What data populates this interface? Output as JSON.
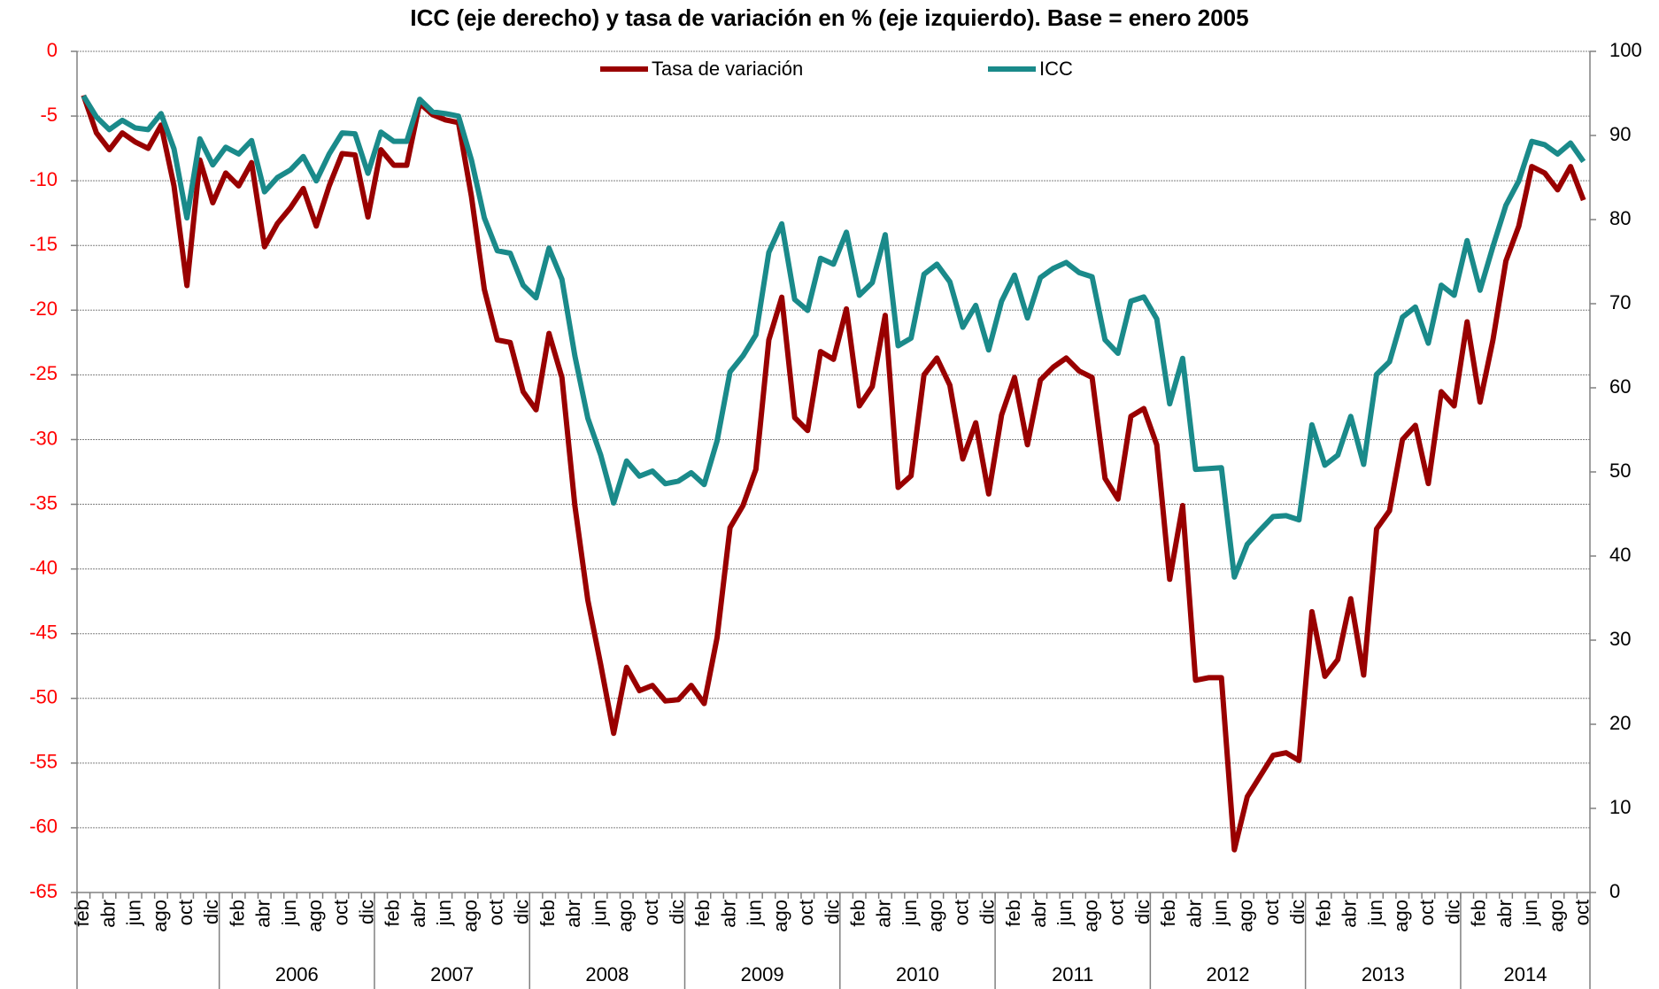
{
  "chart_data": {
    "type": "line",
    "title": "ICC (eje derecho) y tasa de variación en % (eje izquierdo). Base = enero 2005",
    "categories": [
      "feb",
      null,
      "abr",
      null,
      "jun",
      null,
      "ago",
      null,
      "oct",
      null,
      "dic",
      null,
      "feb",
      null,
      "abr",
      null,
      "jun",
      null,
      "ago",
      null,
      "oct",
      null,
      "dic",
      null,
      "feb",
      null,
      "abr",
      null,
      "jun",
      null,
      "ago",
      null,
      "oct",
      null,
      "dic",
      null,
      "feb",
      null,
      "abr",
      null,
      "jun",
      null,
      "ago",
      null,
      "oct",
      null,
      "dic",
      null,
      "feb",
      null,
      "abr",
      null,
      "jun",
      null,
      "ago",
      null,
      "oct",
      null,
      "dic",
      null,
      "feb",
      null,
      "abr",
      null,
      "jun",
      null,
      "ago",
      null,
      "oct",
      null,
      "dic",
      null,
      "feb",
      null,
      "abr",
      null,
      "jun",
      null,
      "ago",
      null,
      "oct",
      null,
      "dic",
      null,
      "feb",
      null,
      "abr",
      null,
      "jun",
      null,
      "ago",
      null,
      "oct",
      null,
      "dic",
      null,
      "feb",
      null,
      "abr",
      null,
      "jun",
      null,
      "ago",
      null,
      "oct",
      null,
      "dic",
      null,
      "feb",
      null,
      "abr",
      null,
      "jun",
      null,
      "ago",
      null,
      "oct"
    ],
    "year_groups": {
      "labels": [
        null,
        "2006",
        "2007",
        "2008",
        "2009",
        "2010",
        "2011",
        "2012",
        "2013",
        "2014"
      ],
      "sizes": [
        11,
        12,
        12,
        12,
        12,
        12,
        12,
        12,
        12,
        10
      ]
    },
    "series": [
      {
        "name": "Tasa de variación",
        "color": "#990000",
        "axis": "y",
        "values": [
          -3.4,
          -6.3,
          -7.6,
          -6.3,
          -7.0,
          -7.5,
          -5.7,
          -10.4,
          -18.1,
          -8.4,
          -11.7,
          -9.4,
          -10.4,
          -8.6,
          -15.1,
          -13.3,
          -12.1,
          -10.6,
          -13.5,
          -10.4,
          -7.9,
          -8.0,
          -12.8,
          -7.6,
          -8.8,
          -8.8,
          -4.0,
          -4.9,
          -5.3,
          -5.5,
          -11.2,
          -18.4,
          -22.3,
          -22.5,
          -26.3,
          -27.7,
          -21.8,
          -25.2,
          -35.1,
          -42.4,
          -47.4,
          -52.7,
          -47.6,
          -49.4,
          -49.0,
          -50.2,
          -50.1,
          -49.0,
          -50.4,
          -45.3,
          -36.8,
          -35.1,
          -32.3,
          -22.3,
          -19.0,
          -28.3,
          -29.3,
          -23.2,
          -23.8,
          -19.9,
          -27.4,
          -25.9,
          -20.4,
          -33.7,
          -32.8,
          -25.0,
          -23.7,
          -25.8,
          -31.5,
          -28.7,
          -34.2,
          -28.1,
          -25.2,
          -30.4,
          -25.4,
          -24.4,
          -23.7,
          -24.7,
          -25.2,
          -33.0,
          -34.6,
          -28.2,
          -27.6,
          -30.4,
          -40.8,
          -35.1,
          -48.6,
          -48.4,
          -48.4,
          -61.7,
          -57.6,
          -56.0,
          -54.4,
          -54.2,
          -54.8,
          -43.3,
          -48.3,
          -47.0,
          -42.3,
          -48.2,
          -36.9,
          -35.5,
          -30.0,
          -28.9,
          -33.4,
          -26.3,
          -27.4,
          -20.9,
          -27.1,
          -22.3,
          -16.2,
          -13.5,
          -8.9,
          -9.4,
          -10.7,
          -8.9,
          -11.5
        ]
      },
      {
        "name": "ICC",
        "color": "#1a8a8a",
        "axis": "y2",
        "values": [
          94.7,
          92.2,
          90.7,
          91.8,
          90.9,
          90.7,
          92.6,
          88.4,
          80.2,
          89.6,
          86.5,
          88.6,
          87.8,
          89.4,
          83.3,
          85.0,
          85.9,
          87.5,
          84.6,
          87.8,
          90.3,
          90.2,
          85.5,
          90.4,
          89.3,
          89.3,
          94.3,
          92.8,
          92.6,
          92.3,
          87.1,
          80.2,
          76.3,
          76.0,
          72.2,
          70.7,
          76.6,
          72.9,
          63.8,
          56.4,
          52.0,
          46.3,
          51.3,
          49.5,
          50.1,
          48.6,
          48.9,
          49.9,
          48.5,
          53.7,
          61.9,
          63.8,
          66.3,
          76.1,
          79.5,
          70.5,
          69.2,
          75.4,
          74.7,
          78.5,
          71.0,
          72.5,
          78.2,
          65.0,
          65.9,
          73.5,
          74.7,
          72.6,
          67.2,
          69.8,
          64.5,
          70.3,
          73.4,
          68.3,
          73.1,
          74.2,
          74.9,
          73.7,
          73.2,
          65.7,
          64.1,
          70.3,
          70.8,
          68.2,
          58.1,
          63.5,
          50.3,
          50.4,
          50.5,
          37.5,
          41.4,
          43.1,
          44.7,
          44.8,
          44.3,
          55.6,
          50.8,
          52.0,
          56.6,
          50.9,
          61.6,
          63.1,
          68.4,
          69.6,
          65.3,
          72.2,
          71.0,
          77.5,
          71.6,
          76.8,
          81.7,
          84.6,
          89.3,
          88.9,
          87.8,
          89.1,
          86.9
        ]
      }
    ],
    "ylim": [
      -65,
      0
    ],
    "yticks": [
      0,
      -5,
      -10,
      -15,
      -20,
      -25,
      -30,
      -35,
      -40,
      -45,
      -50,
      -55,
      -60,
      -65
    ],
    "ytick_color": "#ff0000",
    "y2lim": [
      0,
      100
    ],
    "y2ticks": [
      0,
      10,
      20,
      30,
      40,
      50,
      60,
      70,
      80,
      90,
      100
    ],
    "grid": true,
    "legend": "top"
  }
}
